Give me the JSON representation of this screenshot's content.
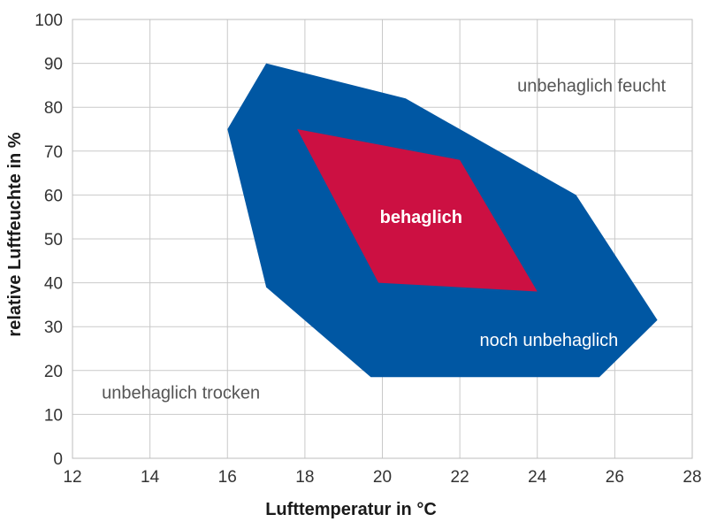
{
  "chart_data": {
    "type": "area",
    "xlabel": "Lufttemperatur in °C",
    "ylabel": "relative Luftfeuchte in %",
    "xlim": [
      12,
      28
    ],
    "ylim": [
      0,
      100
    ],
    "xticks": [
      12,
      14,
      16,
      18,
      20,
      22,
      24,
      26,
      28
    ],
    "yticks": [
      0,
      10,
      20,
      30,
      40,
      50,
      60,
      70,
      80,
      90,
      100
    ],
    "grid": true,
    "colors": {
      "noch_unbehaglich": "#0057a3",
      "behaglich": "#cc1042",
      "grid": "#c9c9c9",
      "text_light": "#555555"
    },
    "regions": [
      {
        "key": "noch_unbehaglich",
        "polygon": [
          [
            17,
            90
          ],
          [
            20.6,
            82
          ],
          [
            25,
            60
          ],
          [
            27.1,
            31.5
          ],
          [
            25.6,
            18.5
          ],
          [
            19.7,
            18.5
          ],
          [
            17,
            39
          ],
          [
            16,
            75
          ]
        ]
      },
      {
        "key": "behaglich",
        "polygon": [
          [
            17.8,
            75
          ],
          [
            22,
            68
          ],
          [
            24,
            38
          ],
          [
            19.9,
            40
          ]
        ]
      }
    ],
    "annotations": [
      {
        "id": "unbehaglich-feucht",
        "text": "unbehaglich feucht",
        "x": 25.4,
        "y": 85,
        "style": "light",
        "anchor": "middle"
      },
      {
        "id": "behaglich",
        "text": "behaglich",
        "x": 21,
        "y": 55,
        "style": "bold-on-dark",
        "anchor": "middle"
      },
      {
        "id": "noch-unbehaglich",
        "text": "noch unbehaglich",
        "x": 24.3,
        "y": 27,
        "style": "on-dark",
        "anchor": "middle"
      },
      {
        "id": "unbehaglich-trocken",
        "text": "unbehaglich trocken",
        "x": 14.8,
        "y": 15,
        "style": "light",
        "anchor": "middle"
      }
    ]
  }
}
